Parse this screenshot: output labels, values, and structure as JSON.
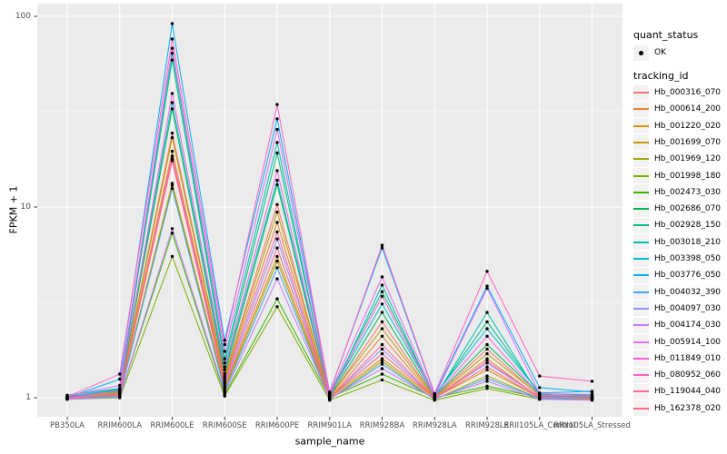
{
  "style": {
    "panel_bg": "#EBEBEB",
    "grid_major_color": "#FFFFFF",
    "grid_minor_color": "#FFFFFF",
    "tick_color": "#333333",
    "axis_text_color": "#4D4D4D",
    "point_color": "#000000",
    "legend_key_bg": "#F2F2F2"
  },
  "chart_data": {
    "type": "line",
    "title": "",
    "xlabel": "sample_name",
    "ylabel": "FPKM + 1",
    "y_scale": "log10",
    "y_ticks": [
      1,
      10,
      100
    ],
    "y_minor_ticks": [
      3.162,
      31.62
    ],
    "ylim": [
      0.79,
      116
    ],
    "grid": "white major+minor gridlines on gray panel",
    "legend_position": "right",
    "point_shape": "black dot on every value",
    "categories": [
      "PB350LA",
      "RRIM600LA",
      "RRIM600LE",
      "RRIM600SE",
      "RRIM600PE",
      "RRIM901LA",
      "RRIM928BA",
      "RRIM928LA",
      "RRIM928LE",
      "RRII105LA_Control",
      "RRII105LA_Stressed"
    ],
    "series": [
      {
        "name": "Hb_000316_070",
        "color": "#F8766D",
        "values": [
          1.0,
          1.07,
          24.4,
          1.3,
          10.3,
          1.0,
          2.5,
          1.0,
          1.8,
          1.02,
          1.0
        ]
      },
      {
        "name": "Hb_000614_200",
        "color": "#EA8331",
        "values": [
          0.99,
          1.06,
          19.6,
          1.24,
          8.3,
          0.99,
          2.1,
          0.99,
          1.6,
          1.0,
          0.99
        ]
      },
      {
        "name": "Hb_001220_020",
        "color": "#D89000",
        "values": [
          1.0,
          1.04,
          13.3,
          1.13,
          5.5,
          1.0,
          1.6,
          1.0,
          1.4,
          1.0,
          1.01
        ]
      },
      {
        "name": "Hb_001699_070",
        "color": "#C09B00",
        "values": [
          1.01,
          1.06,
          23.1,
          1.27,
          9.4,
          1.01,
          2.3,
          1.0,
          1.7,
          1.03,
          1.02
        ]
      },
      {
        "name": "Hb_001969_120",
        "color": "#A3A500",
        "values": [
          1.0,
          1.03,
          13.0,
          1.1,
          5.2,
          0.98,
          1.55,
          0.98,
          1.3,
          0.99,
          1.0
        ]
      },
      {
        "name": "Hb_001998_180",
        "color": "#7CAE00",
        "values": [
          0.98,
          1.0,
          5.5,
          1.02,
          3.0,
          0.97,
          1.24,
          0.97,
          1.12,
          0.98,
          0.98
        ]
      },
      {
        "name": "Hb_002473_030",
        "color": "#39B600",
        "values": [
          1.0,
          1.01,
          7.3,
          1.04,
          3.3,
          1.0,
          1.33,
          1.0,
          1.15,
          1.0,
          1.04
        ]
      },
      {
        "name": "Hb_002686_070",
        "color": "#00BB4E",
        "values": [
          1.02,
          1.08,
          32.7,
          1.34,
          13.1,
          1.01,
          2.8,
          1.01,
          1.9,
          1.04,
          1.0
        ]
      },
      {
        "name": "Hb_002928_150",
        "color": "#00C087",
        "values": [
          1.0,
          1.1,
          59.0,
          1.52,
          19.2,
          1.04,
          3.6,
          1.02,
          2.5,
          1.05,
          1.03
        ]
      },
      {
        "name": "Hb_003018_210",
        "color": "#00C0B2",
        "values": [
          1.01,
          1.11,
          64.0,
          1.6,
          21.8,
          1.0,
          3.9,
          1.0,
          2.8,
          1.02,
          1.01
        ]
      },
      {
        "name": "Hb_003398_050",
        "color": "#00BCD8",
        "values": [
          1.03,
          1.12,
          35.3,
          1.4,
          13.8,
          1.03,
          3.1,
          1.03,
          2.3,
          1.06,
          1.08
        ]
      },
      {
        "name": "Hb_003776_050",
        "color": "#00B0F6",
        "values": [
          1.0,
          1.25,
          91.6,
          2.0,
          29.0,
          1.07,
          6.1,
          1.04,
          3.85,
          1.13,
          1.07
        ]
      },
      {
        "name": "Hb_004032_390",
        "color": "#45A5FF",
        "values": [
          0.99,
          1.02,
          12.5,
          1.08,
          4.8,
          0.98,
          1.5,
          0.98,
          1.26,
          0.99,
          0.99
        ]
      },
      {
        "name": "Hb_004097_030",
        "color": "#9590FF",
        "values": [
          1.0,
          1.05,
          17.9,
          1.18,
          6.8,
          1.0,
          1.8,
          1.0,
          1.52,
          1.01,
          1.0
        ]
      },
      {
        "name": "Hb_004174_030",
        "color": "#C77CFF",
        "values": [
          0.98,
          1.01,
          7.7,
          1.06,
          4.2,
          0.99,
          1.42,
          0.99,
          1.22,
          0.98,
          0.97
        ]
      },
      {
        "name": "Hb_005914_100",
        "color": "#E76BF3",
        "values": [
          1.02,
          1.16,
          68.0,
          1.75,
          25.5,
          1.05,
          4.3,
          1.02,
          3.75,
          1.05,
          1.04
        ]
      },
      {
        "name": "Hb_011849_010",
        "color": "#FA62DB",
        "values": [
          1.0,
          1.09,
          39.4,
          1.45,
          15.5,
          1.02,
          3.4,
          1.01,
          2.1,
          1.03,
          1.02
        ]
      },
      {
        "name": "Hb_080952_060",
        "color": "#FF61C7",
        "values": [
          1.01,
          1.33,
          76.0,
          1.9,
          34.5,
          1.06,
          6.3,
          1.05,
          4.6,
          1.3,
          1.22
        ]
      },
      {
        "name": "Hb_119044_040",
        "color": "#FF689E",
        "values": [
          0.99,
          1.05,
          18.5,
          1.21,
          7.4,
          0.99,
          1.9,
          0.99,
          1.55,
          1.01,
          0.99
        ]
      },
      {
        "name": "Hb_162378_020",
        "color": "#FF6884",
        "values": [
          1.0,
          1.04,
          17.5,
          1.15,
          6.1,
          1.0,
          1.7,
          1.0,
          1.45,
          1.0,
          1.0
        ]
      }
    ],
    "legend": {
      "quant_status": {
        "title": "quant_status",
        "items": [
          {
            "label": "OK",
            "symbol": "black-point"
          }
        ]
      },
      "tracking_id": {
        "title": "tracking_id"
      }
    }
  }
}
